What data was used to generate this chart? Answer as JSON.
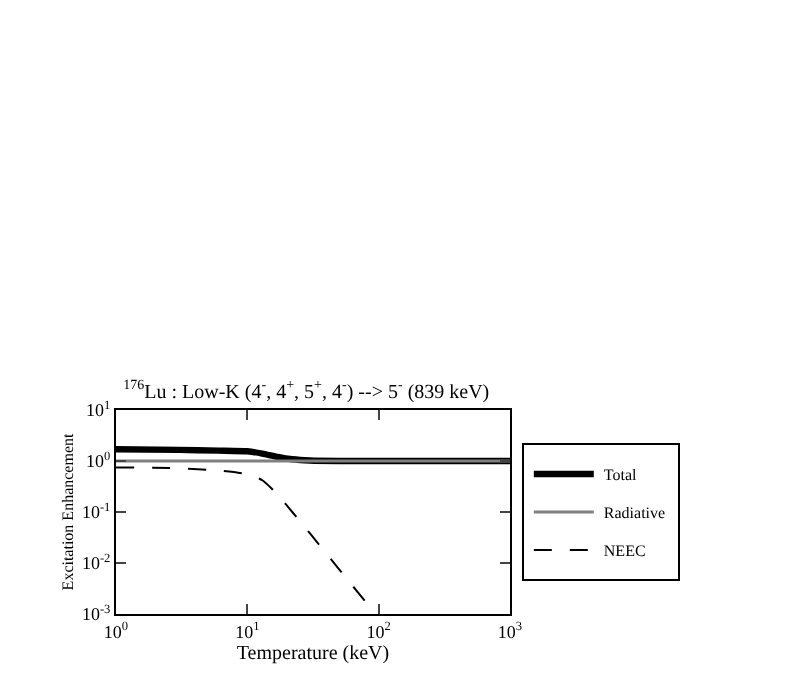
{
  "chart_data": {
    "type": "line",
    "title": "$^{176}$Lu : Low-K (4$^{-}$, 4$^{+}$, 5$^{+}$, 4$^{-}$) --> 5$^{-}$ (839 keV)",
    "xlabel": "Temperature (keV)",
    "ylabel": "Excitation Enhancement",
    "log": "xy",
    "grid": false,
    "legend": "right",
    "xlim": [
      1,
      1000
    ],
    "ylim": [
      0.001,
      10
    ],
    "xticks": [
      {
        "value": 1,
        "label": "10$^{0}$"
      },
      {
        "value": 10,
        "label": "10$^{1}$"
      },
      {
        "value": 100,
        "label": "10$^{2}$"
      },
      {
        "value": 1000,
        "label": "10$^{3}$"
      }
    ],
    "yticks": [
      {
        "value": 0.001,
        "label": "10$^{-3}$"
      },
      {
        "value": 0.01,
        "label": "10$^{-2}$"
      },
      {
        "value": 0.1,
        "label": "10$^{-1}$"
      },
      {
        "value": 1,
        "label": "10$^{0}$"
      },
      {
        "value": 10,
        "label": "10$^{1}$"
      }
    ],
    "series": [
      {
        "name": "Total",
        "color": "#000000",
        "line_style": "solid",
        "x": [
          1,
          3,
          6,
          10,
          13,
          17,
          22,
          30,
          50,
          100,
          1000
        ],
        "values": [
          1.7,
          1.65,
          1.6,
          1.55,
          1.4,
          1.2,
          1.08,
          1.02,
          1.0,
          1.0,
          1.0
        ]
      },
      {
        "name": "Radiative",
        "color": "#808080",
        "line_style": "solid",
        "x": [
          1,
          10,
          100,
          1000
        ],
        "values": [
          1.0,
          1.0,
          1.0,
          1.0
        ]
      },
      {
        "name": "NEEC",
        "color": "#000000",
        "line_style": "dashed",
        "x": [
          1,
          3,
          6,
          10,
          13,
          17,
          22,
          30,
          50,
          70,
          95
        ],
        "values": [
          0.75,
          0.72,
          0.65,
          0.55,
          0.42,
          0.22,
          0.1,
          0.038,
          0.0075,
          0.0026,
          0.001
        ]
      }
    ]
  }
}
